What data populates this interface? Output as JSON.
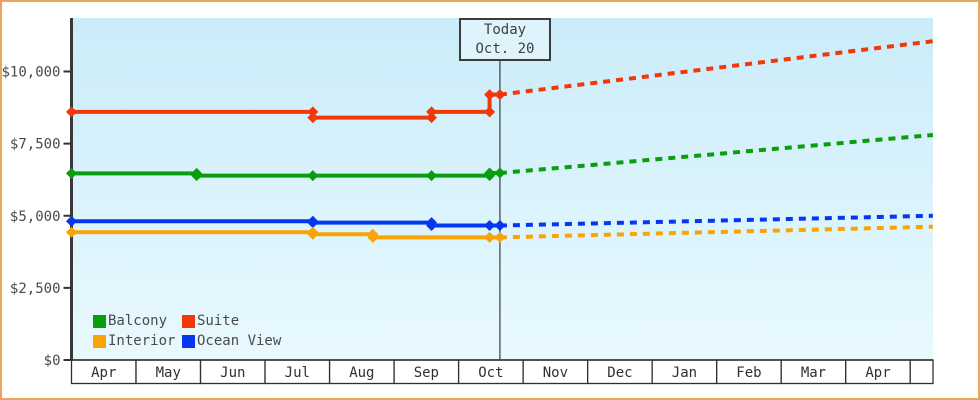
{
  "frame": {
    "border_color": "#eaa45c",
    "plot_bg_top": "#cbecfa",
    "plot_bg_bottom": "#e8f9fe",
    "axis_color": "#383838",
    "label_color": "#4a4a4a"
  },
  "chart_data": {
    "type": "line",
    "title": "",
    "xlabel": "",
    "ylabel": "",
    "currency": "USD",
    "ylim": [
      0,
      11800
    ],
    "grid": false,
    "y_ticks": [
      {
        "value": 0,
        "label": "$0"
      },
      {
        "value": 2500,
        "label": "$2,500"
      },
      {
        "value": 5000,
        "label": "$5,000"
      },
      {
        "value": 7500,
        "label": "$7,500"
      },
      {
        "value": 10000,
        "label": "$10,000"
      }
    ],
    "x_months": [
      "Apr",
      "May",
      "Jun",
      "Jul",
      "Aug",
      "Sep",
      "Oct",
      "Nov",
      "Dec",
      "Jan",
      "Feb",
      "Mar",
      "Apr"
    ],
    "today": {
      "title": "Today",
      "date": "Oct. 20",
      "month_pos": 6.64
    },
    "series": [
      {
        "name": "Suite",
        "color": "#f23708",
        "style": "solid-then-dashed",
        "history": [
          [
            0,
            8600
          ],
          [
            3.74,
            8600
          ],
          [
            3.74,
            8400
          ],
          [
            5.58,
            8400
          ],
          [
            5.58,
            8600
          ],
          [
            6.48,
            8600
          ],
          [
            6.48,
            9200
          ],
          [
            6.64,
            9200
          ]
        ],
        "forecast": [
          [
            6.64,
            9200
          ],
          [
            13.35,
            11050
          ]
        ]
      },
      {
        "name": "Balcony",
        "color": "#0a9e0a",
        "style": "solid-then-dashed",
        "history": [
          [
            0,
            6470
          ],
          [
            1.94,
            6470
          ],
          [
            1.94,
            6390
          ],
          [
            3.74,
            6390
          ],
          [
            5.58,
            6390
          ],
          [
            6.48,
            6390
          ],
          [
            6.48,
            6480
          ],
          [
            6.64,
            6480
          ]
        ],
        "forecast": [
          [
            6.64,
            6480
          ],
          [
            13.35,
            7800
          ]
        ]
      },
      {
        "name": "Ocean View",
        "color": "#0636ee",
        "style": "solid-then-dashed",
        "history": [
          [
            0,
            4810
          ],
          [
            3.74,
            4810
          ],
          [
            3.74,
            4760
          ],
          [
            5.58,
            4760
          ],
          [
            5.58,
            4660
          ],
          [
            6.48,
            4660
          ],
          [
            6.64,
            4660
          ]
        ],
        "forecast": [
          [
            6.64,
            4660
          ],
          [
            13.35,
            5000
          ]
        ]
      },
      {
        "name": "Interior",
        "color": "#f9a306",
        "style": "solid-then-dashed",
        "history": [
          [
            0,
            4430
          ],
          [
            3.74,
            4430
          ],
          [
            3.74,
            4360
          ],
          [
            4.67,
            4360
          ],
          [
            4.67,
            4250
          ],
          [
            6.48,
            4250
          ],
          [
            6.64,
            4250
          ]
        ],
        "forecast": [
          [
            6.64,
            4250
          ],
          [
            13.35,
            4620
          ]
        ]
      }
    ],
    "legend": {
      "position": "bottom-left",
      "items": [
        {
          "label": "Balcony",
          "color": "#0a9e0a"
        },
        {
          "label": "Suite",
          "color": "#f23708"
        },
        {
          "label": "Interior",
          "color": "#f9a306"
        },
        {
          "label": "Ocean View",
          "color": "#0636ee"
        }
      ]
    }
  }
}
